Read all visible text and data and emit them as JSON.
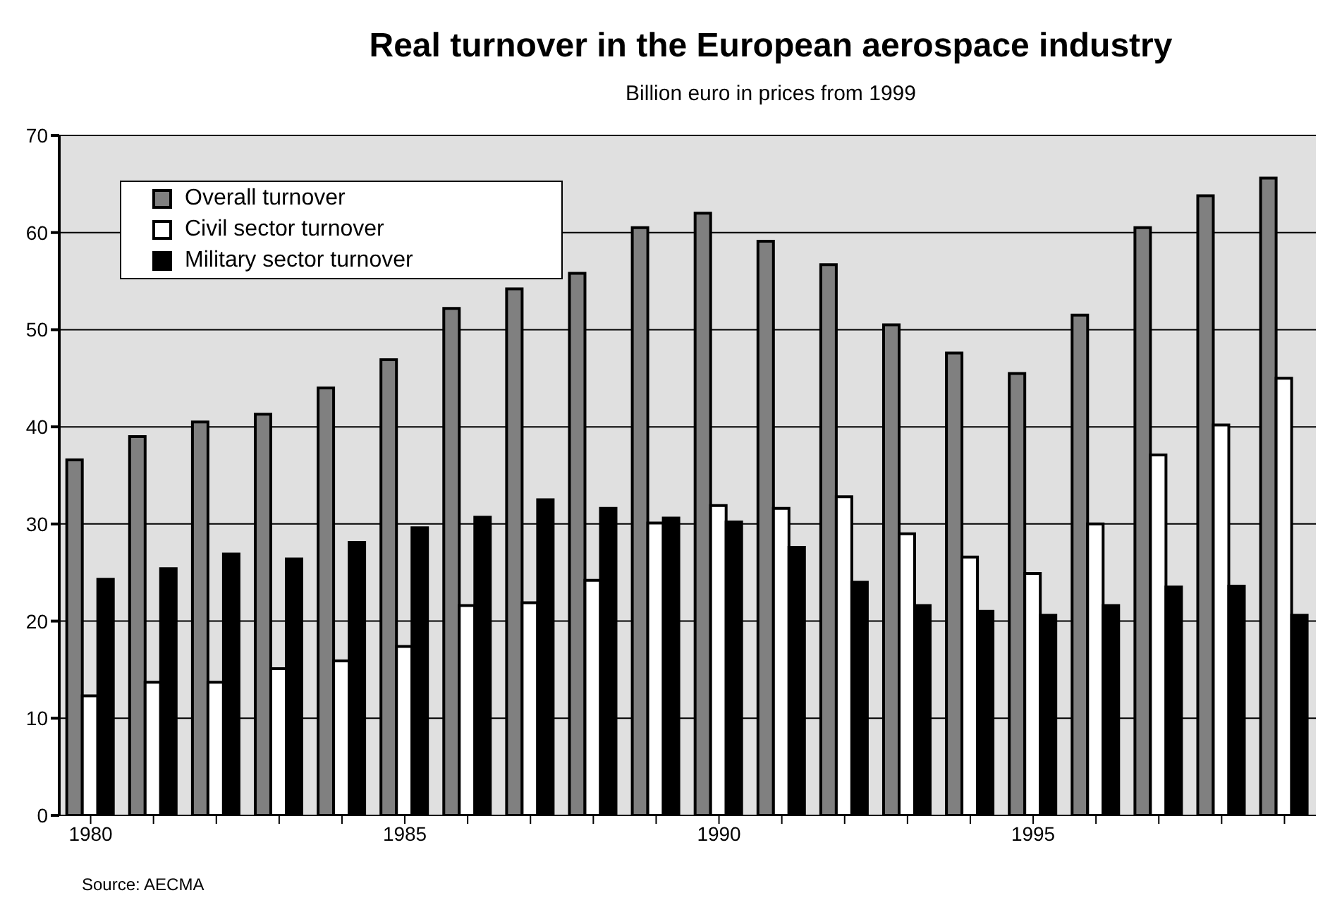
{
  "chart_data": {
    "type": "bar",
    "title": "Real turnover in the European aerospace industry",
    "subtitle": "Billion euro in prices from 1999",
    "categories": [
      "1980",
      null,
      null,
      null,
      null,
      "1985",
      null,
      null,
      null,
      null,
      "1990",
      null,
      null,
      null,
      null,
      "1995",
      null,
      null,
      null,
      null
    ],
    "series": [
      {
        "name": "Overall turnover",
        "color": "#808080",
        "values": [
          36.6,
          39,
          40.5,
          41.3,
          44,
          46.9,
          52.2,
          54.2,
          55.8,
          60.5,
          62,
          59.1,
          56.7,
          50.5,
          47.6,
          45.5,
          51.5,
          60.5,
          63.8,
          65.6
        ]
      },
      {
        "name": "Civil sector turnover",
        "color": "#ffffff",
        "values": [
          12.3,
          13.7,
          13.7,
          15.1,
          15.9,
          17.4,
          21.6,
          21.9,
          24.2,
          30.1,
          31.9,
          31.6,
          32.8,
          29,
          26.6,
          24.9,
          30,
          37.1,
          40.2,
          45
        ]
      },
      {
        "name": "Military sector turnover",
        "color": "#000000",
        "values": [
          24.3,
          25.4,
          26.9,
          26.4,
          28.1,
          29.6,
          30.7,
          32.5,
          31.6,
          30.6,
          30.2,
          27.6,
          24,
          21.6,
          21,
          20.6,
          21.6,
          23.5,
          23.6,
          20.6
        ]
      }
    ],
    "ylim": [
      0,
      70
    ],
    "yticks": [
      0,
      10,
      20,
      30,
      40,
      50,
      60,
      70
    ],
    "grid": "y",
    "legend": "top left",
    "annotations": [
      "Source: AECMA"
    ]
  }
}
